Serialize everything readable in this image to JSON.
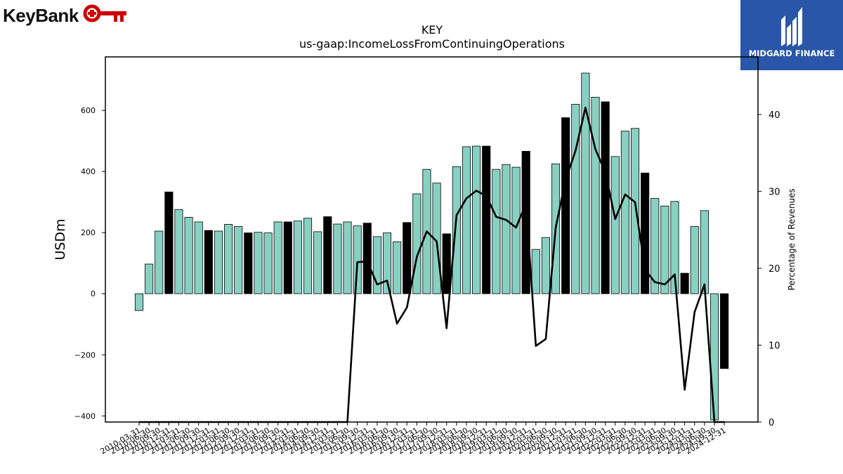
{
  "header": {
    "brand_name": "KeyBank",
    "brand_color": "#cc0000",
    "badge_name": "MIDGARD FINANCE",
    "badge_color": "#2956a8"
  },
  "chart_data": {
    "type": "bar",
    "title": "KEY",
    "subtitle": "us-gaap:IncomeLossFromContinuingOperations",
    "ylabel": "USDm",
    "y2label": "Percentage of Revenues",
    "ylim": [
      -420,
      775
    ],
    "y2lim": [
      0,
      47.5
    ],
    "yticks": [
      -400,
      -200,
      0,
      200,
      400,
      600
    ],
    "y2ticks": [
      0,
      10,
      20,
      30,
      40
    ],
    "grid": false,
    "colors": {
      "quarter": "#88d0c2",
      "fiscal_year": "#000000",
      "line": "#000000"
    },
    "categories": [
      "2010-03-31",
      "2010-06-30",
      "2010-09-30",
      "2010-12-31",
      "2011-03-31",
      "2011-06-30",
      "2011-09-30",
      "2011-12-31",
      "2012-03-31",
      "2012-06-30",
      "2012-09-30",
      "2012-12-31",
      "2013-03-31",
      "2013-06-30",
      "2013-09-30",
      "2013-12-31",
      "2014-03-31",
      "2014-06-30",
      "2014-09-30",
      "2014-12-31",
      "2015-03-31",
      "2015-06-30",
      "2015-09-30",
      "2015-12-31",
      "2016-03-31",
      "2016-06-30",
      "2016-09-30",
      "2016-12-31",
      "2017-03-31",
      "2017-06-30",
      "2017-09-30",
      "2017-12-31",
      "2018-03-31",
      "2018-06-30",
      "2018-09-30",
      "2018-12-31",
      "2019-03-31",
      "2019-06-30",
      "2019-09-30",
      "2019-12-31",
      "2020-03-31",
      "2020-06-30",
      "2020-09-30",
      "2020-12-31",
      "2021-03-31",
      "2021-06-30",
      "2021-09-30",
      "2021-12-31",
      "2022-03-31",
      "2022-06-30",
      "2022-09-30",
      "2022-12-31",
      "2023-03-31",
      "2023-06-30",
      "2023-09-30",
      "2023-12-31",
      "2024-03-31",
      "2024-06-30",
      "2024-09-30",
      "2024-12-31"
    ],
    "values": [
      -55,
      97,
      205,
      333,
      275,
      250,
      235,
      207,
      205,
      227,
      220,
      199,
      201,
      199,
      235,
      235,
      238,
      247,
      203,
      252,
      228,
      235,
      222,
      231,
      187,
      199,
      170,
      233,
      327,
      407,
      362,
      196,
      416,
      481,
      483,
      483,
      407,
      423,
      414,
      466,
      145,
      184,
      425,
      576,
      620,
      722,
      643,
      628,
      449,
      532,
      541,
      395,
      312,
      287,
      302,
      67,
      220,
      272,
      -413,
      -245
    ],
    "fiscal_year_end": [
      false,
      false,
      false,
      true,
      false,
      false,
      false,
      true,
      false,
      false,
      false,
      true,
      false,
      false,
      false,
      true,
      false,
      false,
      false,
      true,
      false,
      false,
      false,
      true,
      false,
      false,
      false,
      true,
      false,
      false,
      false,
      true,
      false,
      false,
      false,
      true,
      false,
      false,
      false,
      true,
      false,
      false,
      false,
      true,
      false,
      false,
      false,
      true,
      false,
      false,
      false,
      true,
      false,
      false,
      false,
      true,
      false,
      false,
      false,
      true
    ],
    "series": [
      {
        "axis": "right",
        "type": "line",
        "values": [
          0,
          0,
          0,
          0,
          0,
          0,
          0,
          0,
          0,
          0,
          0,
          0,
          0,
          0,
          0,
          0,
          0,
          0,
          0,
          0,
          0,
          0,
          20.8,
          20.9,
          17.9,
          18.4,
          12.8,
          14.9,
          21.5,
          24.8,
          23.5,
          12.2,
          26.9,
          29.1,
          30.1,
          29.4,
          26.7,
          26.3,
          25.3,
          28.4,
          9.9,
          10.8,
          25.3,
          31.5,
          35.3,
          40.9,
          35.5,
          32.5,
          26.4,
          29.6,
          28.6,
          19.8,
          18.2,
          17.9,
          19.2,
          4.2,
          14.3,
          17.9,
          0,
          0
        ]
      }
    ]
  }
}
